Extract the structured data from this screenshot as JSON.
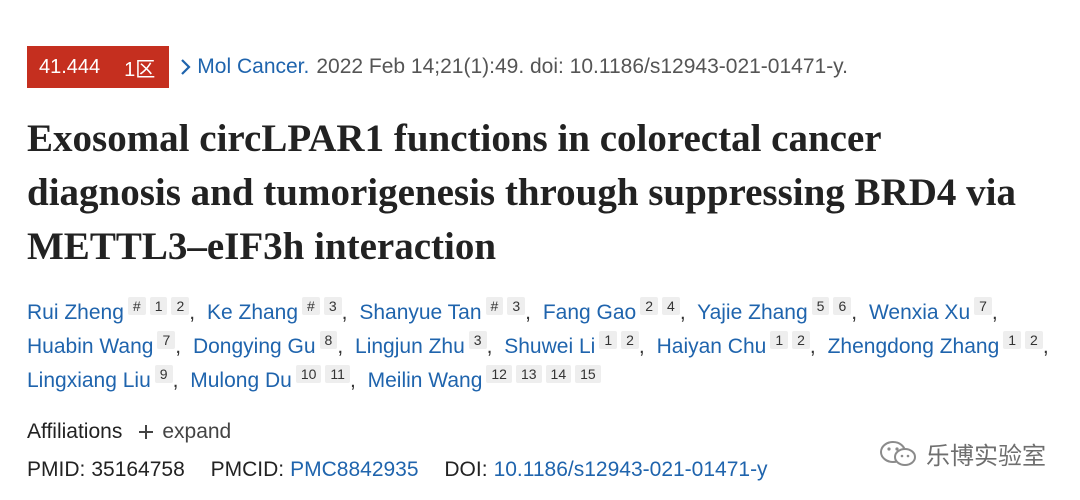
{
  "badge": {
    "impact_factor": "41.444",
    "zone": "1区"
  },
  "citation": {
    "journal": "Mol Cancer.",
    "details": "2022 Feb 14;21(1):49. doi: 10.1186/s12943-021-01471-y."
  },
  "title": "Exosomal circLPAR1 functions in colorectal cancer diagnosis and tumorigenesis through suppressing BRD4 via METTL3–eIF3h interaction",
  "author_separator": ",",
  "authors": [
    {
      "name": "Rui Zheng",
      "equal_contribution": "#",
      "affiliations": [
        1,
        2
      ]
    },
    {
      "name": "Ke Zhang",
      "equal_contribution": "#",
      "affiliations": [
        3
      ]
    },
    {
      "name": "Shanyue Tan",
      "equal_contribution": "#",
      "affiliations": [
        3
      ]
    },
    {
      "name": "Fang Gao",
      "affiliations": [
        2,
        4
      ]
    },
    {
      "name": "Yajie Zhang",
      "affiliations": [
        5,
        6
      ]
    },
    {
      "name": "Wenxia Xu",
      "affiliations": [
        7
      ]
    },
    {
      "name": "Huabin Wang",
      "affiliations": [
        7
      ]
    },
    {
      "name": "Dongying Gu",
      "affiliations": [
        8
      ]
    },
    {
      "name": "Lingjun Zhu",
      "affiliations": [
        3
      ]
    },
    {
      "name": "Shuwei Li",
      "affiliations": [
        1,
        2
      ]
    },
    {
      "name": "Haiyan Chu",
      "affiliations": [
        1,
        2
      ]
    },
    {
      "name": "Zhengdong Zhang",
      "affiliations": [
        1,
        2
      ]
    },
    {
      "name": "Lingxiang Liu",
      "affiliations": [
        9
      ]
    },
    {
      "name": "Mulong Du",
      "affiliations": [
        10,
        11
      ]
    },
    {
      "name": "Meilin Wang",
      "affiliations": [
        12,
        13,
        14,
        15
      ]
    }
  ],
  "affiliations_section": {
    "label": "Affiliations",
    "action": "expand"
  },
  "identifiers": {
    "pmid_label": "PMID:",
    "pmid": "35164758",
    "pmcid_label": "PMCID:",
    "pmcid": "PMC8842935",
    "doi_label": "DOI:",
    "doi": "10.1186/s12943-021-01471-y"
  },
  "watermark": "乐博实验室"
}
